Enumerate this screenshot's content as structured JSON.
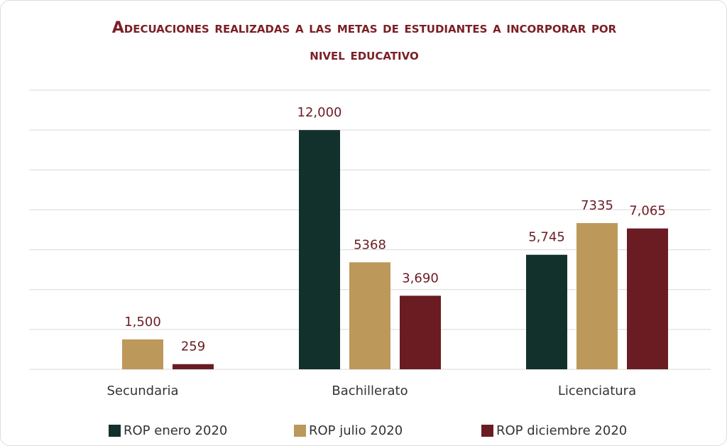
{
  "chart_data": {
    "type": "bar",
    "title": "Adecuaciones realizadas a las metas de estudiantes a incorporar por nivel educativo",
    "categories": [
      "Secundaria",
      "Bachillerato",
      "Licenciatura"
    ],
    "series": [
      {
        "name": "ROP enero 2020",
        "color": "#13312c",
        "values": [
          null,
          12000,
          5745
        ],
        "value_labels": [
          null,
          "12,000",
          "5,745"
        ]
      },
      {
        "name": "ROP julio 2020",
        "color": "#bd985b",
        "values": [
          1500,
          5368,
          7335
        ],
        "value_labels": [
          "1,500",
          "5368",
          "7335"
        ]
      },
      {
        "name": "ROP diciembre 2020",
        "color": "#6a1c22",
        "values": [
          259,
          3690,
          7065
        ],
        "value_labels": [
          "259",
          "3,690",
          "7,065"
        ]
      }
    ],
    "ylim": [
      0,
      14000
    ],
    "yticks": [
      0,
      2000,
      4000,
      6000,
      8000,
      10000,
      12000,
      14000
    ],
    "grid": true,
    "legend": "bottom"
  }
}
